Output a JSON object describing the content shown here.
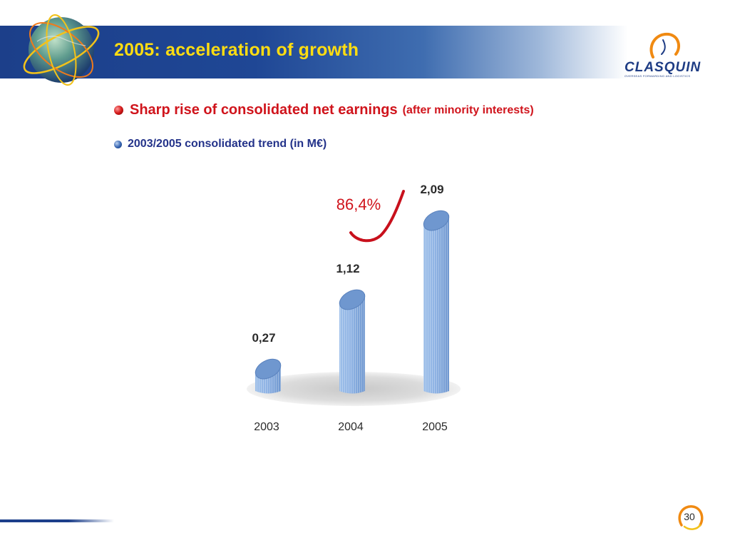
{
  "slide": {
    "title": "2005: acceleration of growth",
    "page_number": "30"
  },
  "logo": {
    "name": "CLASQUIN",
    "tagline": "OVERSEAS FORWARDING AND LOGISTICS"
  },
  "bullets": [
    {
      "text": "Sharp rise of consolidated net earnings",
      "note": "(after minority interests)"
    },
    {
      "text": "2003/2005 consolidated trend (in M€)"
    }
  ],
  "colors": {
    "header_blue": "#1f4795",
    "title_yellow": "#ffdd11",
    "accent_red": "#d0141c",
    "bar_blue": "#8fb4e6"
  },
  "chart_data": {
    "type": "bar",
    "categories": [
      "2003",
      "2004",
      "2005"
    ],
    "values": [
      0.27,
      1.12,
      2.09
    ],
    "value_labels": [
      "0,27",
      "1,12",
      "2,09"
    ],
    "annotation": "86,4%",
    "title": "",
    "xlabel": "",
    "ylabel": "",
    "ylim": [
      0,
      2.1
    ],
    "grid": false
  }
}
